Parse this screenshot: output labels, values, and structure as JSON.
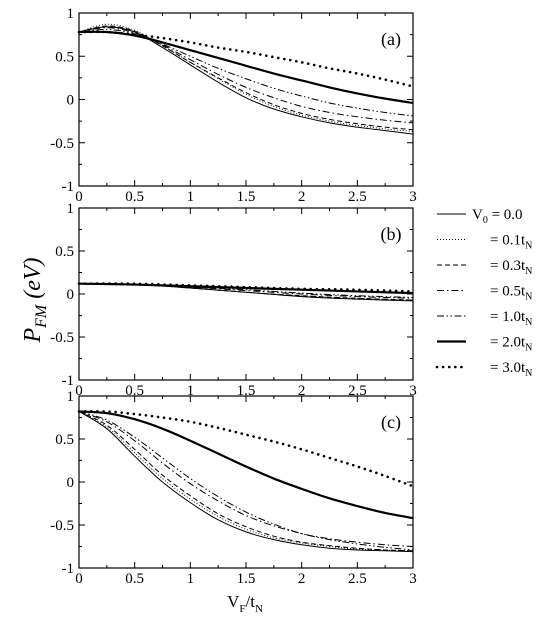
{
  "figure": {
    "ylabel_main": "P",
    "ylabel_sub": "FM",
    "ylabel_unit": "(eV)",
    "xlabel_main": "V",
    "xlabel_sub1": "F",
    "xlabel_slash": "/t",
    "xlabel_sub2": "N"
  },
  "legend": {
    "items": [
      {
        "prefix": "V",
        "prefix_sub": "0",
        "text": " = 0.0",
        "suffix": "",
        "suffix_sub": "",
        "style": "solid-thin"
      },
      {
        "prefix": "",
        "prefix_sub": "",
        "text": "= 0.1t",
        "suffix_sub": "N",
        "style": "dotted-thin"
      },
      {
        "prefix": "",
        "prefix_sub": "",
        "text": "= 0.3t",
        "suffix_sub": "N",
        "style": "dashed"
      },
      {
        "prefix": "",
        "prefix_sub": "",
        "text": "= 0.5t",
        "suffix_sub": "N",
        "style": "dashdot"
      },
      {
        "prefix": "",
        "prefix_sub": "",
        "text": "= 1.0t",
        "suffix_sub": "N",
        "style": "dashdotdot"
      },
      {
        "prefix": "",
        "prefix_sub": "",
        "text": "= 2.0t",
        "suffix_sub": "N",
        "style": "solid-thick"
      },
      {
        "prefix": "",
        "prefix_sub": "",
        "text": "= 3.0t",
        "suffix_sub": "N",
        "style": "dotted-thick"
      }
    ]
  },
  "chart_data": [
    {
      "type": "line",
      "panel_label": "(a)",
      "xlim": [
        0,
        3
      ],
      "ylim": [
        -1,
        1
      ],
      "xticks": [
        "0",
        "0.5",
        "1",
        "1.5",
        "2",
        "2.5",
        "3"
      ],
      "yticks": [
        "-1",
        "-0.5",
        "0",
        "0.5",
        "1"
      ],
      "x": [
        0,
        0.25,
        0.5,
        0.75,
        1,
        1.25,
        1.5,
        1.75,
        2,
        2.25,
        2.5,
        2.75,
        3
      ],
      "series": [
        {
          "style": "solid-thin",
          "values": [
            0.78,
            0.84,
            0.78,
            0.6,
            0.4,
            0.2,
            0.02,
            -0.11,
            -0.2,
            -0.27,
            -0.32,
            -0.36,
            -0.4
          ]
        },
        {
          "style": "dotted-thin",
          "values": [
            0.78,
            0.87,
            0.8,
            0.62,
            0.43,
            0.24,
            0.06,
            -0.08,
            -0.18,
            -0.25,
            -0.3,
            -0.34,
            -0.37
          ]
        },
        {
          "style": "dashed",
          "values": [
            0.78,
            0.85,
            0.79,
            0.62,
            0.43,
            0.25,
            0.08,
            -0.06,
            -0.16,
            -0.23,
            -0.28,
            -0.32,
            -0.35
          ]
        },
        {
          "style": "dashdot",
          "values": [
            0.78,
            0.83,
            0.77,
            0.63,
            0.46,
            0.29,
            0.14,
            0.02,
            -0.08,
            -0.15,
            -0.2,
            -0.24,
            -0.27
          ]
        },
        {
          "style": "dashdotdot",
          "values": [
            0.78,
            0.81,
            0.76,
            0.64,
            0.5,
            0.36,
            0.24,
            0.13,
            0.04,
            -0.04,
            -0.1,
            -0.15,
            -0.19
          ]
        },
        {
          "style": "solid-thick",
          "values": [
            0.78,
            0.78,
            0.74,
            0.66,
            0.57,
            0.48,
            0.39,
            0.3,
            0.22,
            0.14,
            0.07,
            0.01,
            -0.04
          ]
        },
        {
          "style": "dotted-thick",
          "values": [
            0.78,
            0.78,
            0.75,
            0.71,
            0.66,
            0.6,
            0.55,
            0.49,
            0.43,
            0.36,
            0.3,
            0.23,
            0.15
          ]
        }
      ]
    },
    {
      "type": "line",
      "panel_label": "(b)",
      "xlim": [
        0,
        3
      ],
      "ylim": [
        -1,
        1
      ],
      "xticks": [
        "0",
        "0.5",
        "1",
        "1.5",
        "2",
        "2.5",
        "3"
      ],
      "yticks": [
        "-1",
        "-0.5",
        "0",
        "0.5",
        "1"
      ],
      "x": [
        0,
        0.5,
        1,
        1.5,
        2,
        2.5,
        3
      ],
      "series": [
        {
          "style": "solid-thin",
          "values": [
            0.12,
            0.11,
            0.07,
            0.02,
            -0.03,
            -0.06,
            -0.08
          ]
        },
        {
          "style": "dotted-thin",
          "values": [
            0.12,
            0.11,
            0.07,
            0.02,
            -0.02,
            -0.05,
            -0.07
          ]
        },
        {
          "style": "dashed",
          "values": [
            0.12,
            0.11,
            0.07,
            0.02,
            -0.02,
            -0.05,
            -0.07
          ]
        },
        {
          "style": "dashdot",
          "values": [
            0.12,
            0.11,
            0.08,
            0.04,
            0.0,
            -0.03,
            -0.05
          ]
        },
        {
          "style": "dashdotdot",
          "values": [
            0.12,
            0.11,
            0.08,
            0.05,
            0.01,
            -0.02,
            -0.04
          ]
        },
        {
          "style": "solid-thick",
          "values": [
            0.12,
            0.11,
            0.09,
            0.07,
            0.05,
            0.03,
            0.01
          ]
        },
        {
          "style": "dotted-thick",
          "values": [
            0.12,
            0.12,
            0.1,
            0.08,
            0.06,
            0.05,
            0.03
          ]
        }
      ]
    },
    {
      "type": "line",
      "panel_label": "(c)",
      "xlim": [
        0,
        3
      ],
      "ylim": [
        -1,
        1
      ],
      "xticks": [
        "0",
        "0.5",
        "1",
        "1.5",
        "2",
        "2.5",
        "3"
      ],
      "yticks": [
        "-1",
        "-0.5",
        "0",
        "0.5",
        "1"
      ],
      "x": [
        0,
        0.25,
        0.5,
        0.75,
        1,
        1.25,
        1.5,
        1.75,
        2,
        2.25,
        2.5,
        2.75,
        3
      ],
      "series": [
        {
          "style": "solid-thin",
          "values": [
            0.82,
            0.62,
            0.3,
            0.0,
            -0.24,
            -0.44,
            -0.58,
            -0.67,
            -0.73,
            -0.77,
            -0.79,
            -0.8,
            -0.81
          ]
        },
        {
          "style": "dotted-thin",
          "values": [
            0.82,
            0.64,
            0.34,
            0.04,
            -0.2,
            -0.4,
            -0.55,
            -0.65,
            -0.71,
            -0.75,
            -0.78,
            -0.79,
            -0.8
          ]
        },
        {
          "style": "dashed",
          "values": [
            0.82,
            0.66,
            0.38,
            0.08,
            -0.16,
            -0.37,
            -0.52,
            -0.63,
            -0.7,
            -0.74,
            -0.77,
            -0.79,
            -0.8
          ]
        },
        {
          "style": "dashdot",
          "values": [
            0.82,
            0.7,
            0.48,
            0.22,
            -0.02,
            -0.22,
            -0.39,
            -0.51,
            -0.6,
            -0.66,
            -0.7,
            -0.73,
            -0.75
          ]
        },
        {
          "style": "dashdotdot",
          "values": [
            0.82,
            0.72,
            0.52,
            0.28,
            0.04,
            -0.17,
            -0.35,
            -0.49,
            -0.6,
            -0.67,
            -0.72,
            -0.76,
            -0.79
          ]
        },
        {
          "style": "solid-thick",
          "values": [
            0.82,
            0.8,
            0.73,
            0.62,
            0.48,
            0.33,
            0.18,
            0.04,
            -0.08,
            -0.19,
            -0.28,
            -0.36,
            -0.42
          ]
        },
        {
          "style": "dotted-thick",
          "values": [
            0.82,
            0.82,
            0.79,
            0.75,
            0.7,
            0.63,
            0.55,
            0.47,
            0.38,
            0.28,
            0.18,
            0.07,
            -0.05
          ]
        }
      ]
    }
  ]
}
